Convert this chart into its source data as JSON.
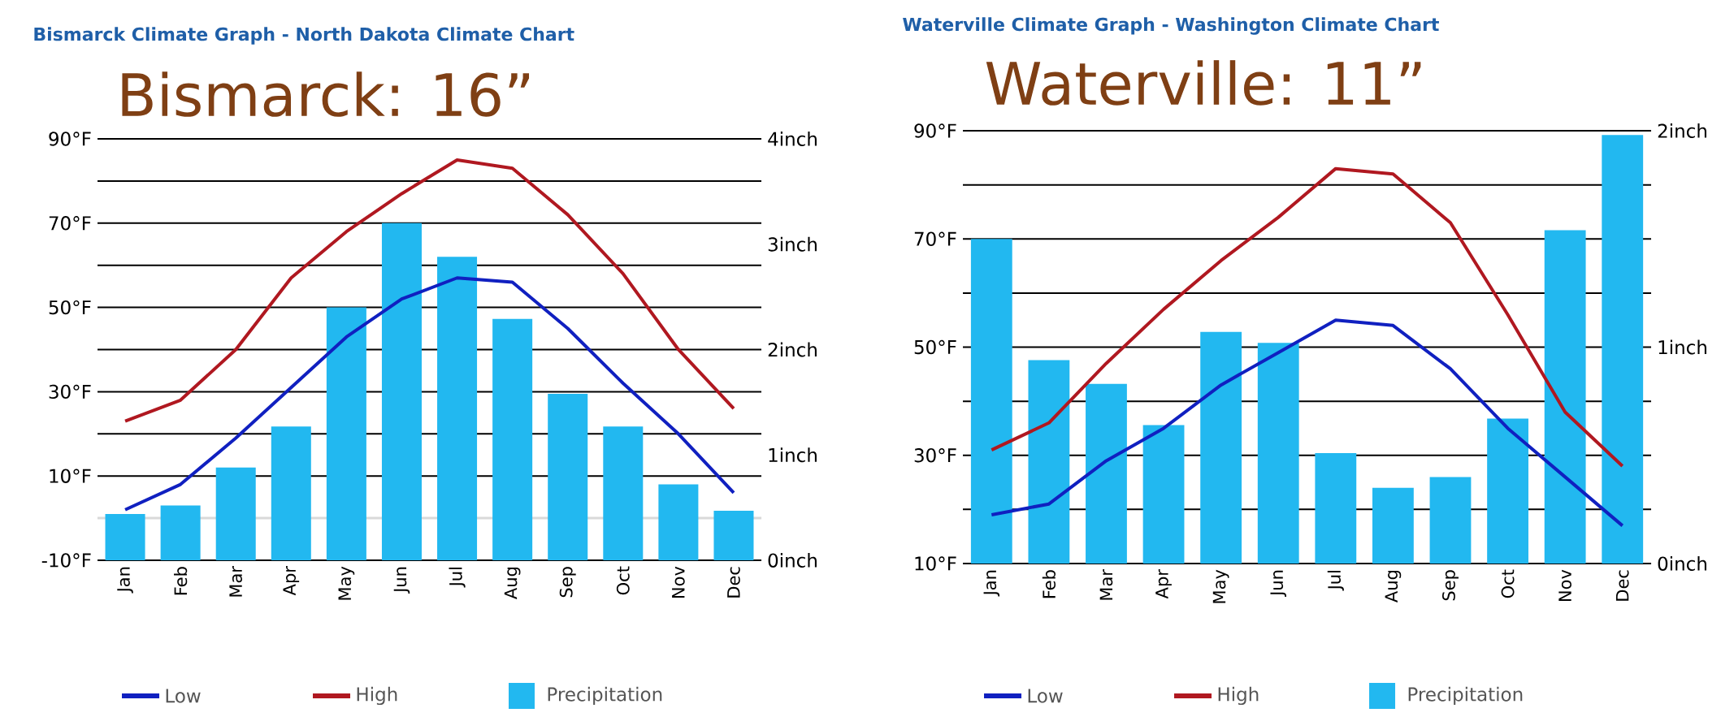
{
  "chart_data": [
    {
      "type": "bar",
      "title": "Bismarck Climate Graph - North Dakota Climate Chart",
      "annotations": [
        "Bismarck: 16”"
      ],
      "categories": [
        "Jan",
        "Feb",
        "Mar",
        "Apr",
        "May",
        "Jun",
        "Jul",
        "Aug",
        "Sep",
        "Oct",
        "Nov",
        "Dec"
      ],
      "series": [
        {
          "name": "Low",
          "type": "line",
          "color": "#1020c0",
          "values": [
            2,
            8,
            19,
            31,
            43,
            52,
            57,
            56,
            45,
            32,
            20,
            6
          ]
        },
        {
          "name": "High",
          "type": "line",
          "color": "#b01820",
          "values": [
            23,
            28,
            40,
            57,
            68,
            77,
            85,
            83,
            72,
            58,
            40,
            26
          ]
        },
        {
          "name": "Precipitation",
          "axis": "y2",
          "color": "#22b8f0",
          "values": [
            0.44,
            0.52,
            0.88,
            1.27,
            2.4,
            3.2,
            2.88,
            2.29,
            1.58,
            1.27,
            0.72,
            0.47
          ]
        }
      ],
      "ylim": [
        -10,
        90
      ],
      "yticks": [
        {
          "value": -10,
          "label": "-10°F"
        },
        {
          "value": 0,
          "label": null
        },
        {
          "value": 10,
          "label": "10°F"
        },
        {
          "value": 20,
          "label": null
        },
        {
          "value": 30,
          "label": "30°F"
        },
        {
          "value": 40,
          "label": null
        },
        {
          "value": 50,
          "label": "50°F"
        },
        {
          "value": 60,
          "label": null
        },
        {
          "value": 70,
          "label": "70°F"
        },
        {
          "value": 80,
          "label": null
        },
        {
          "value": 90,
          "label": "90°F"
        }
      ],
      "y2lim": [
        0,
        4
      ],
      "y2ticks": [
        {
          "value": 0,
          "label": "0inch"
        },
        {
          "value": 1,
          "label": "1inch"
        },
        {
          "value": 2,
          "label": "2inch"
        },
        {
          "value": 3,
          "label": "3inch"
        },
        {
          "value": 4,
          "label": "4inch"
        }
      ],
      "ref_lines": [
        {
          "axis": "y",
          "value": 0,
          "color": "#d9d9d9"
        }
      ],
      "grid": "y",
      "legend": "bottom"
    },
    {
      "type": "bar",
      "title": "Waterville Climate Graph - Washington Climate Chart",
      "annotations": [
        "Waterville: 11”"
      ],
      "categories": [
        "Jan",
        "Feb",
        "Mar",
        "Apr",
        "May",
        "Jun",
        "Jul",
        "Aug",
        "Sep",
        "Oct",
        "Nov",
        "Dec"
      ],
      "series": [
        {
          "name": "Low",
          "type": "line",
          "color": "#1020c0",
          "values": [
            19,
            21,
            29,
            35,
            43,
            49,
            55,
            54,
            46,
            35,
            26,
            17
          ]
        },
        {
          "name": "High",
          "type": "line",
          "color": "#b01820",
          "values": [
            31,
            36,
            47,
            57,
            66,
            74,
            83,
            82,
            73,
            56,
            38,
            28
          ]
        },
        {
          "name": "Precipitation",
          "axis": "y2",
          "color": "#22b8f0",
          "values": [
            1.5,
            0.94,
            0.83,
            0.64,
            1.07,
            1.02,
            0.51,
            0.35,
            0.4,
            0.67,
            1.54,
            1.98
          ]
        }
      ],
      "ylim": [
        10,
        90
      ],
      "yticks": [
        {
          "value": 10,
          "label": "10°F"
        },
        {
          "value": 20,
          "label": null
        },
        {
          "value": 30,
          "label": "30°F"
        },
        {
          "value": 40,
          "label": null
        },
        {
          "value": 50,
          "label": "50°F"
        },
        {
          "value": 60,
          "label": null
        },
        {
          "value": 70,
          "label": "70°F"
        },
        {
          "value": 80,
          "label": null
        },
        {
          "value": 90,
          "label": "90°F"
        }
      ],
      "y2lim": [
        0,
        2
      ],
      "y2ticks": [
        {
          "value": 0,
          "label": "0inch"
        },
        {
          "value": 1,
          "label": "1inch"
        },
        {
          "value": 2,
          "label": "2inch"
        }
      ],
      "grid": "y",
      "legend": "bottom"
    }
  ]
}
